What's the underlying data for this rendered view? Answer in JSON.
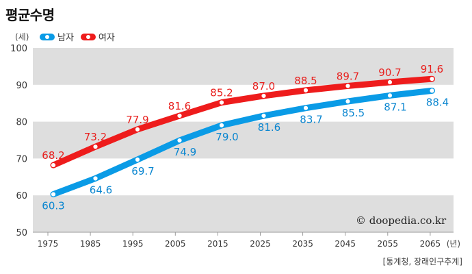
{
  "header": {
    "title": "평균수명"
  },
  "legend": [
    {
      "name": "남자",
      "color": "#0a9be6"
    },
    {
      "name": "여자",
      "color": "#ee1c1c"
    }
  ],
  "watermark": "© doopedia.co.kr",
  "source": "[통계청, 장래인구추계]",
  "chart_data": {
    "type": "line",
    "title": "평균수명",
    "xlabel": "(년)",
    "ylabel": "(세)",
    "x": [
      "1975",
      "1985",
      "1995",
      "2005",
      "2015",
      "2025",
      "2035",
      "2045",
      "2055",
      "2065"
    ],
    "ylim": [
      50,
      100
    ],
    "yticks": [
      50,
      60,
      70,
      80,
      90,
      100
    ],
    "grid": "alternating horizontal bands",
    "legend_position": "top-left",
    "series": [
      {
        "name": "남자",
        "color": "#0a9be6",
        "label_color": "#0a86d0",
        "values": [
          60.3,
          64.6,
          69.7,
          74.9,
          79.0,
          81.6,
          83.7,
          85.5,
          87.1,
          88.4
        ]
      },
      {
        "name": "여자",
        "color": "#ee1c1c",
        "label_color": "#e8201e",
        "values": [
          68.2,
          73.2,
          77.9,
          81.6,
          85.2,
          87.0,
          88.5,
          89.7,
          90.7,
          91.6
        ]
      }
    ]
  }
}
